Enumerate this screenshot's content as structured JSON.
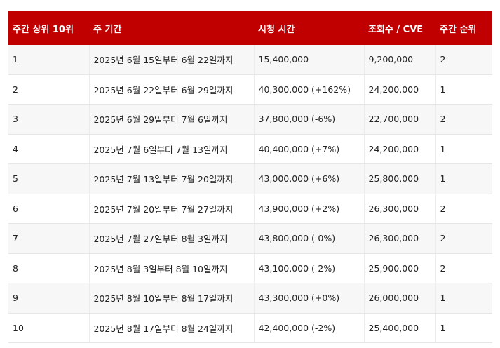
{
  "table": {
    "headers": [
      "주간 상위 10위",
      "주 기간",
      "시청 시간",
      "조회수 / CVE",
      "주간 순위"
    ],
    "rows": [
      [
        "1",
        "2025년 6월 15일부터 6월 22일까지",
        "15,400,000",
        "9,200,000",
        "2"
      ],
      [
        "2",
        "2025년 6월 22일부터 6월 29일까지",
        "40,300,000 (+162%)",
        "24,200,000",
        "1"
      ],
      [
        "3",
        "2025년 6월 29일부터 7월 6일까지",
        "37,800,000 (-6%)",
        "22,700,000",
        "2"
      ],
      [
        "4",
        "2025년 7월 6일부터 7월 13일까지",
        "40,400,000 (+7%)",
        "24,200,000",
        "1"
      ],
      [
        "5",
        "2025년 7월 13일부터 7월 20일까지",
        "43,000,000 (+6%)",
        "25,800,000",
        "1"
      ],
      [
        "6",
        "2025년 7월 20일부터 7월 27일까지",
        "43,900,000 (+2%)",
        "26,300,000",
        "2"
      ],
      [
        "7",
        "2025년 7월 27일부터 8월 3일까지",
        "43,800,000 (-0%)",
        "26,300,000",
        "2"
      ],
      [
        "8",
        "2025년 8월 3일부터 8월 10일까지",
        "43,100,000 (-2%)",
        "25,900,000",
        "2"
      ],
      [
        "9",
        "2025년 8월 10일부터 8월 17일까지",
        "43,300,000 (+0%)",
        "26,000,000",
        "1"
      ],
      [
        "10",
        "2025년 8월 17일부터 8월 24일까지",
        "42,400,000 (-2%)",
        "25,400,000",
        "1"
      ]
    ]
  },
  "colors": {
    "header_bg": "#c00000",
    "header_text": "#ffffff",
    "row_alt_bg": "#f7f7f8"
  }
}
